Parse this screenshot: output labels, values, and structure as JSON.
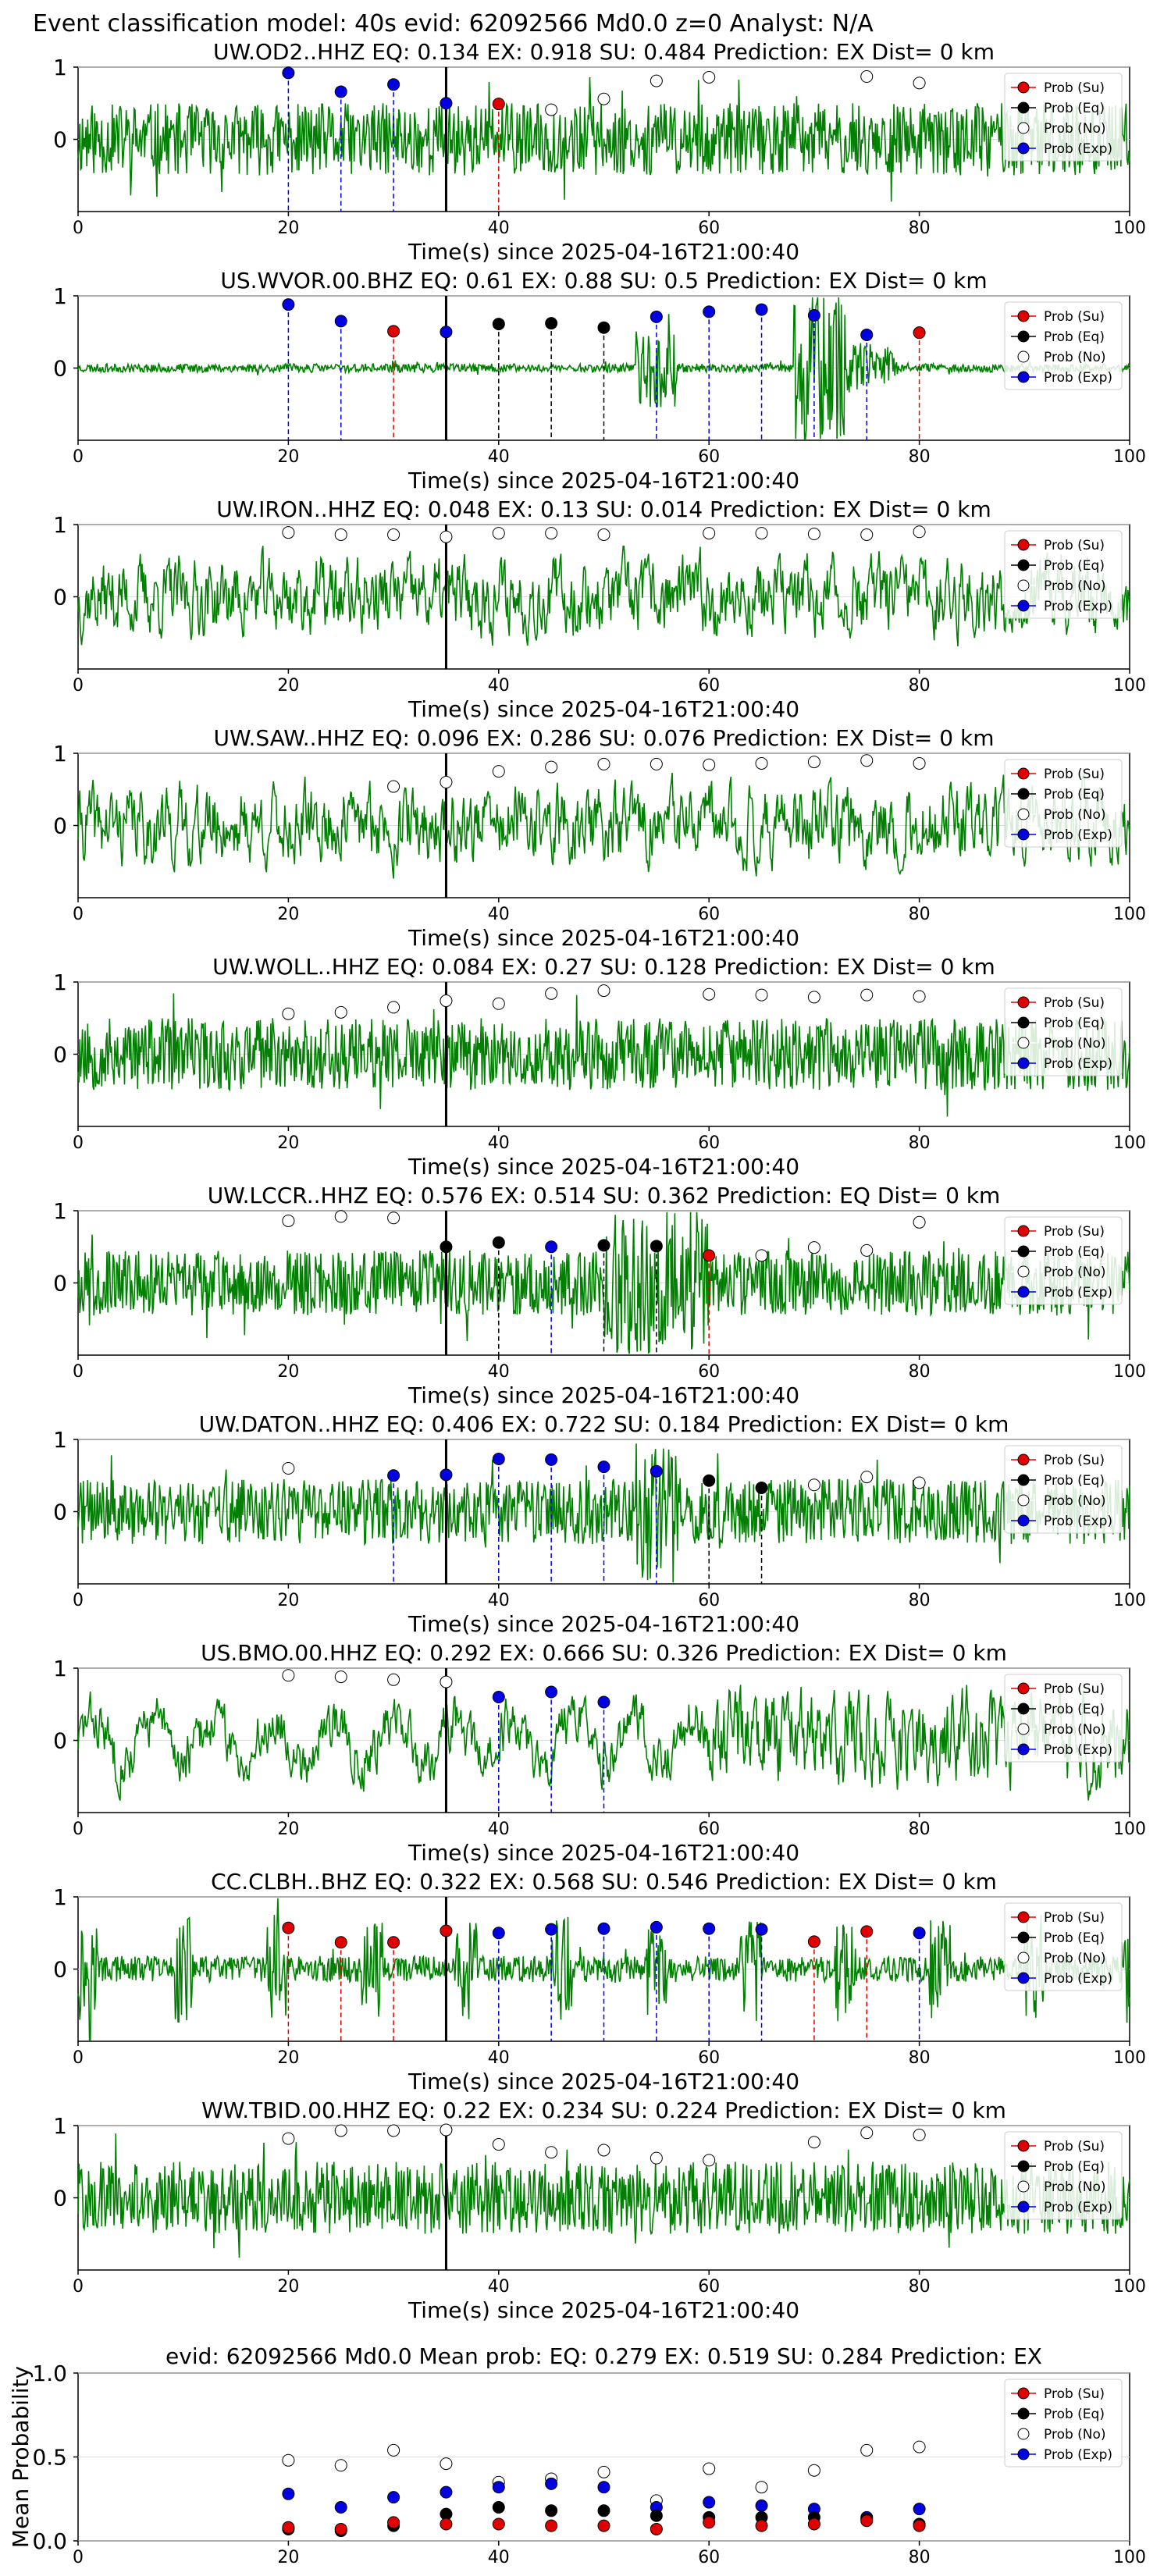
{
  "suptitle": "Event classification model: 40s evid: 62092566 Md0.0 z=0 Analyst: N/A",
  "legend_labels": [
    "Prob (Su)",
    "Prob (Eq)",
    "Prob (No)",
    "Prob (Exp)"
  ],
  "colors": {
    "su": "#e00000",
    "eq": "#000000",
    "no": "#ffffff",
    "exp": "#0000e0",
    "trace": "#008000"
  },
  "chart_data": [
    {
      "type": "line",
      "station": "UW.OD2..HHZ",
      "title": "UW.OD2..HHZ   EQ: 0.134  EX: 0.918  SU: 0.484   Prediction: EX    Dist= 0 km",
      "xlabel": "Time(s) since 2025-04-16T21:00:40",
      "x_ticks": [
        "0",
        "20",
        "40",
        "60",
        "80",
        "100"
      ],
      "y_ticks": [
        "1",
        "0"
      ],
      "xlim": [
        0,
        100
      ],
      "ylim": [
        -1,
        1
      ],
      "pick_time": 35,
      "style": "noisy",
      "seed": 11,
      "points": [
        [
          20,
          0.92,
          "exp"
        ],
        [
          25,
          0.66,
          "exp"
        ],
        [
          30,
          0.76,
          "exp"
        ],
        [
          35,
          0.5,
          "exp"
        ],
        [
          40,
          0.49,
          "su"
        ],
        [
          45,
          0.41,
          "no"
        ],
        [
          50,
          0.56,
          "no"
        ],
        [
          55,
          0.81,
          "no"
        ],
        [
          60,
          0.86,
          "no"
        ],
        [
          75,
          0.87,
          "no"
        ],
        [
          80,
          0.78,
          "no"
        ]
      ]
    },
    {
      "type": "line",
      "station": "US.WVOR.00.BHZ",
      "title": "US.WVOR.00.BHZ   EQ: 0.61  EX: 0.88  SU: 0.5   Prediction: EX    Dist= 0 km",
      "xlabel": "Time(s) since 2025-04-16T21:00:40",
      "x_ticks": [
        "0",
        "20",
        "40",
        "60",
        "80",
        "100"
      ],
      "y_ticks": [
        "1",
        "0"
      ],
      "xlim": [
        0,
        100
      ],
      "ylim": [
        -1,
        1
      ],
      "pick_time": 35,
      "style": "quiet",
      "seed": 23,
      "points": [
        [
          20,
          0.88,
          "exp"
        ],
        [
          25,
          0.65,
          "exp"
        ],
        [
          30,
          0.51,
          "su"
        ],
        [
          35,
          0.5,
          "exp"
        ],
        [
          40,
          0.61,
          "eq"
        ],
        [
          45,
          0.62,
          "eq"
        ],
        [
          50,
          0.56,
          "eq"
        ],
        [
          55,
          0.71,
          "exp"
        ],
        [
          60,
          0.78,
          "exp"
        ],
        [
          65,
          0.81,
          "exp"
        ],
        [
          70,
          0.73,
          "exp"
        ],
        [
          75,
          0.46,
          "exp"
        ],
        [
          80,
          0.49,
          "su"
        ]
      ]
    },
    {
      "type": "line",
      "station": "UW.IRON..HHZ",
      "title": "UW.IRON..HHZ   EQ: 0.048  EX: 0.13  SU: 0.014   Prediction: EX    Dist= 0 km",
      "xlabel": "Time(s) since 2025-04-16T21:00:40",
      "x_ticks": [
        "0",
        "20",
        "40",
        "60",
        "80",
        "100"
      ],
      "y_ticks": [
        "1",
        "0"
      ],
      "xlim": [
        0,
        100
      ],
      "ylim": [
        -1,
        1
      ],
      "pick_time": 35,
      "style": "lowfreq",
      "seed": 37,
      "points": [
        [
          20,
          0.89,
          "no"
        ],
        [
          25,
          0.86,
          "no"
        ],
        [
          30,
          0.86,
          "no"
        ],
        [
          35,
          0.83,
          "no"
        ],
        [
          40,
          0.88,
          "no"
        ],
        [
          45,
          0.88,
          "no"
        ],
        [
          50,
          0.86,
          "no"
        ],
        [
          60,
          0.88,
          "no"
        ],
        [
          65,
          0.88,
          "no"
        ],
        [
          70,
          0.87,
          "no"
        ],
        [
          75,
          0.86,
          "no"
        ],
        [
          80,
          0.9,
          "no"
        ]
      ]
    },
    {
      "type": "line",
      "station": "UW.SAW..HHZ",
      "title": "UW.SAW..HHZ   EQ: 0.096  EX: 0.286  SU: 0.076   Prediction: EX    Dist= 0 km",
      "xlabel": "Time(s) since 2025-04-16T21:00:40",
      "x_ticks": [
        "0",
        "20",
        "40",
        "60",
        "80",
        "100"
      ],
      "y_ticks": [
        "1",
        "0"
      ],
      "xlim": [
        0,
        100
      ],
      "ylim": [
        -1,
        1
      ],
      "pick_time": 35,
      "style": "lowfreq",
      "seed": 41,
      "points": [
        [
          30,
          0.54,
          "no"
        ],
        [
          35,
          0.6,
          "no"
        ],
        [
          40,
          0.75,
          "no"
        ],
        [
          45,
          0.81,
          "no"
        ],
        [
          50,
          0.85,
          "no"
        ],
        [
          55,
          0.85,
          "no"
        ],
        [
          60,
          0.84,
          "no"
        ],
        [
          65,
          0.86,
          "no"
        ],
        [
          70,
          0.88,
          "no"
        ],
        [
          75,
          0.9,
          "no"
        ],
        [
          80,
          0.86,
          "no"
        ]
      ]
    },
    {
      "type": "line",
      "station": "UW.WOLL..HHZ",
      "title": "UW.WOLL..HHZ   EQ: 0.084  EX: 0.27  SU: 0.128   Prediction: EX    Dist= 0 km",
      "xlabel": "Time(s) since 2025-04-16T21:00:40",
      "x_ticks": [
        "0",
        "20",
        "40",
        "60",
        "80",
        "100"
      ],
      "y_ticks": [
        "1",
        "0"
      ],
      "xlim": [
        0,
        100
      ],
      "ylim": [
        -1,
        1
      ],
      "pick_time": 35,
      "style": "noisy",
      "seed": 53,
      "points": [
        [
          20,
          0.56,
          "no"
        ],
        [
          25,
          0.58,
          "no"
        ],
        [
          30,
          0.65,
          "no"
        ],
        [
          35,
          0.74,
          "no"
        ],
        [
          40,
          0.7,
          "no"
        ],
        [
          45,
          0.84,
          "no"
        ],
        [
          50,
          0.88,
          "no"
        ],
        [
          60,
          0.83,
          "no"
        ],
        [
          65,
          0.82,
          "no"
        ],
        [
          70,
          0.79,
          "no"
        ],
        [
          75,
          0.82,
          "no"
        ],
        [
          80,
          0.8,
          "no"
        ]
      ]
    },
    {
      "type": "line",
      "station": "UW.LCCR..HHZ",
      "title": "UW.LCCR..HHZ   EQ: 0.576  EX: 0.514  SU: 0.362   Prediction: EQ    Dist= 0 km",
      "xlabel": "Time(s) since 2025-04-16T21:00:40",
      "x_ticks": [
        "0",
        "20",
        "40",
        "60",
        "80",
        "100"
      ],
      "y_ticks": [
        "1",
        "0"
      ],
      "xlim": [
        0,
        100
      ],
      "ylim": [
        -1,
        1
      ],
      "pick_time": 35,
      "style": "burst",
      "burst": [
        50,
        60
      ],
      "seed": 67,
      "points": [
        [
          20,
          0.86,
          "no"
        ],
        [
          25,
          0.92,
          "no"
        ],
        [
          30,
          0.9,
          "no"
        ],
        [
          35,
          0.5,
          "eq"
        ],
        [
          40,
          0.56,
          "eq"
        ],
        [
          45,
          0.5,
          "exp"
        ],
        [
          50,
          0.52,
          "eq"
        ],
        [
          55,
          0.51,
          "eq"
        ],
        [
          60,
          0.38,
          "su"
        ],
        [
          65,
          0.38,
          "no"
        ],
        [
          70,
          0.49,
          "no"
        ],
        [
          75,
          0.45,
          "no"
        ],
        [
          80,
          0.84,
          "no"
        ]
      ]
    },
    {
      "type": "line",
      "station": "UW.DATON..HHZ",
      "title": "UW.DATON..HHZ   EQ: 0.406  EX: 0.722  SU: 0.184   Prediction: EX    Dist= 0 km",
      "xlabel": "Time(s) since 2025-04-16T21:00:40",
      "x_ticks": [
        "0",
        "20",
        "40",
        "60",
        "80",
        "100"
      ],
      "y_ticks": [
        "1",
        "0"
      ],
      "xlim": [
        0,
        100
      ],
      "ylim": [
        -1,
        1
      ],
      "pick_time": 35,
      "style": "burst",
      "burst": [
        53,
        57
      ],
      "seed": 71,
      "points": [
        [
          20,
          0.6,
          "no"
        ],
        [
          30,
          0.5,
          "exp"
        ],
        [
          35,
          0.51,
          "exp"
        ],
        [
          40,
          0.73,
          "exp"
        ],
        [
          45,
          0.72,
          "exp"
        ],
        [
          50,
          0.62,
          "exp"
        ],
        [
          55,
          0.56,
          "exp"
        ],
        [
          60,
          0.43,
          "eq"
        ],
        [
          65,
          0.33,
          "eq"
        ],
        [
          70,
          0.37,
          "no"
        ],
        [
          75,
          0.48,
          "no"
        ],
        [
          80,
          0.4,
          "no"
        ]
      ]
    },
    {
      "type": "line",
      "station": "US.BMO.00.HHZ",
      "title": "US.BMO.00.HHZ   EQ: 0.292  EX: 0.666  SU: 0.326   Prediction: EX    Dist= 0 km",
      "xlabel": "Time(s) since 2025-04-16T21:00:40",
      "x_ticks": [
        "0",
        "20",
        "40",
        "60",
        "80",
        "100"
      ],
      "y_ticks": [
        "1",
        "0"
      ],
      "xlim": [
        0,
        100
      ],
      "ylim": [
        -1,
        1
      ],
      "pick_time": 35,
      "style": "wave_then_noise",
      "seed": 83,
      "points": [
        [
          20,
          0.9,
          "no"
        ],
        [
          25,
          0.88,
          "no"
        ],
        [
          30,
          0.84,
          "no"
        ],
        [
          35,
          0.81,
          "no"
        ],
        [
          40,
          0.6,
          "exp"
        ],
        [
          45,
          0.67,
          "exp"
        ],
        [
          50,
          0.53,
          "exp"
        ]
      ]
    },
    {
      "type": "line",
      "station": "CC.CLBH..BHZ",
      "title": "CC.CLBH..BHZ   EQ: 0.322  EX: 0.568  SU: 0.546   Prediction: EX    Dist= 0 km",
      "xlabel": "Time(s) since 2025-04-16T21:00:40",
      "x_ticks": [
        "0",
        "20",
        "40",
        "60",
        "80",
        "100"
      ],
      "y_ticks": [
        "1",
        "0"
      ],
      "xlim": [
        0,
        100
      ],
      "ylim": [
        -1,
        1
      ],
      "pick_time": 35,
      "style": "bursty",
      "seed": 97,
      "points": [
        [
          20,
          0.57,
          "su"
        ],
        [
          25,
          0.37,
          "su"
        ],
        [
          30,
          0.37,
          "su"
        ],
        [
          35,
          0.53,
          "su"
        ],
        [
          40,
          0.5,
          "exp"
        ],
        [
          45,
          0.55,
          "exp"
        ],
        [
          50,
          0.56,
          "exp"
        ],
        [
          55,
          0.58,
          "exp"
        ],
        [
          60,
          0.56,
          "exp"
        ],
        [
          65,
          0.55,
          "exp"
        ],
        [
          70,
          0.38,
          "su"
        ],
        [
          75,
          0.52,
          "su"
        ],
        [
          80,
          0.5,
          "exp"
        ]
      ]
    },
    {
      "type": "line",
      "station": "WW.TBID.00.HHZ",
      "title": "WW.TBID.00.HHZ   EQ: 0.22  EX: 0.234  SU: 0.224   Prediction: EX    Dist= 0 km",
      "xlabel": "Time(s) since 2025-04-16T21:00:40",
      "x_ticks": [
        "0",
        "20",
        "40",
        "60",
        "80",
        "100"
      ],
      "y_ticks": [
        "1",
        "0"
      ],
      "xlim": [
        0,
        100
      ],
      "ylim": [
        -1,
        1
      ],
      "pick_time": 35,
      "style": "noisy",
      "seed": 101,
      "points": [
        [
          20,
          0.82,
          "no"
        ],
        [
          25,
          0.93,
          "no"
        ],
        [
          30,
          0.93,
          "no"
        ],
        [
          35,
          0.94,
          "no"
        ],
        [
          40,
          0.74,
          "no"
        ],
        [
          45,
          0.63,
          "no"
        ],
        [
          50,
          0.66,
          "no"
        ],
        [
          55,
          0.55,
          "no"
        ],
        [
          60,
          0.52,
          "no"
        ],
        [
          70,
          0.77,
          "no"
        ],
        [
          75,
          0.9,
          "no"
        ],
        [
          80,
          0.87,
          "no"
        ]
      ]
    },
    {
      "type": "scatter",
      "title": "evid: 62092566  Md0.0   Mean prob:   EQ: 0.279  EX: 0.519  SU: 0.284   Prediction: EX",
      "ylabel": "Mean Probability",
      "x_ticks": [
        "0",
        "20",
        "40",
        "60",
        "80",
        "100"
      ],
      "y_ticks": [
        "1.0",
        "0.5",
        "0.0"
      ],
      "xlim": [
        0,
        100
      ],
      "ylim": [
        0,
        1
      ],
      "x": [
        20,
        25,
        30,
        35,
        40,
        45,
        50,
        55,
        60,
        65,
        70,
        75,
        80
      ],
      "series": [
        {
          "key": "no",
          "values": [
            0.48,
            0.45,
            0.54,
            0.46,
            0.35,
            0.37,
            0.41,
            0.24,
            0.43,
            0.32,
            0.42,
            0.54,
            0.56
          ]
        },
        {
          "key": "exp",
          "values": [
            0.28,
            0.2,
            0.26,
            0.29,
            0.32,
            0.34,
            0.32,
            0.2,
            0.23,
            0.21,
            0.19,
            0.14,
            0.19
          ]
        },
        {
          "key": "eq",
          "values": [
            0.07,
            0.06,
            0.09,
            0.16,
            0.2,
            0.18,
            0.18,
            0.15,
            0.14,
            0.14,
            0.14,
            0.13,
            0.1
          ]
        },
        {
          "key": "su",
          "values": [
            0.08,
            0.07,
            0.11,
            0.1,
            0.1,
            0.09,
            0.09,
            0.07,
            0.11,
            0.09,
            0.1,
            0.12,
            0.09
          ]
        }
      ]
    }
  ]
}
